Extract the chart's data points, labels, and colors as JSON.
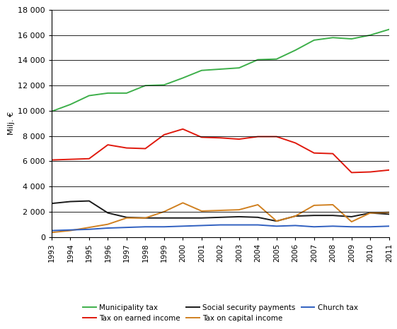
{
  "years": [
    1993,
    1994,
    1995,
    1996,
    1997,
    1998,
    1999,
    2000,
    2001,
    2002,
    2003,
    2004,
    2005,
    2006,
    2007,
    2008,
    2009,
    2010,
    2011
  ],
  "municipality_tax": [
    9950,
    10500,
    11200,
    11400,
    11400,
    12000,
    12050,
    12600,
    13200,
    13300,
    13400,
    14050,
    14100,
    14800,
    15600,
    15800,
    15700,
    16000,
    16450
  ],
  "tax_on_earned_income": [
    6100,
    6150,
    6200,
    7300,
    7050,
    7000,
    8100,
    8550,
    7900,
    7850,
    7750,
    7950,
    7950,
    7450,
    6650,
    6600,
    5100,
    5150,
    5300
  ],
  "social_security_payments": [
    2650,
    2800,
    2850,
    1900,
    1550,
    1500,
    1500,
    1500,
    1500,
    1550,
    1600,
    1550,
    1250,
    1650,
    1700,
    1700,
    1600,
    1900,
    1800
  ],
  "tax_on_capital_income": [
    350,
    500,
    750,
    1000,
    1500,
    1500,
    2000,
    2700,
    2050,
    2100,
    2150,
    2550,
    1250,
    1650,
    2500,
    2550,
    1200,
    1900,
    1950
  ],
  "church_tax": [
    500,
    550,
    600,
    700,
    750,
    800,
    800,
    850,
    900,
    950,
    950,
    950,
    850,
    900,
    800,
    850,
    800,
    800,
    850
  ],
  "municipality_tax_color": "#3daf4a",
  "tax_on_earned_income_color": "#e0190d",
  "social_security_payments_color": "#1a1a1a",
  "tax_on_capital_income_color": "#d08020",
  "church_tax_color": "#3060c0",
  "ylabel": "Milj. €",
  "ylim": [
    0,
    18000
  ],
  "yticks": [
    0,
    2000,
    4000,
    6000,
    8000,
    10000,
    12000,
    14000,
    16000,
    18000
  ],
  "ytick_labels": [
    "0",
    "2 000",
    "4 000",
    "6 000",
    "8 000",
    "10 000",
    "12 000",
    "14 000",
    "16 000",
    "18 000"
  ],
  "legend_labels": [
    "Municipality tax",
    "Tax on earned income",
    "Social security payments",
    "Tax on capital income",
    "Church tax"
  ],
  "background_color": "#ffffff"
}
